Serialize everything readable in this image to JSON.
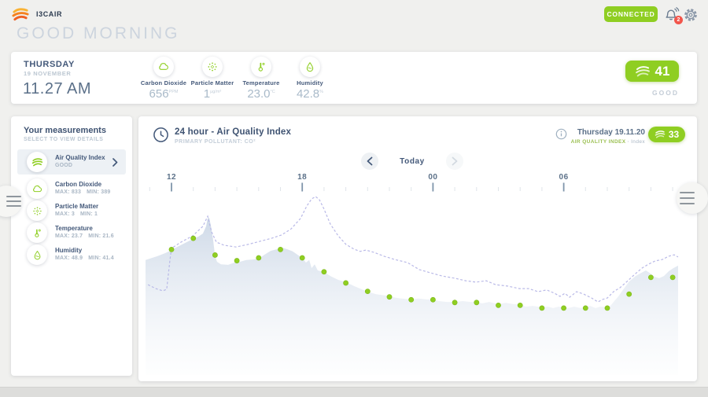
{
  "brand": {
    "name": "I3CAIR"
  },
  "header": {
    "greeting": "GOOD MORNING",
    "connection_status": "CONNECTED",
    "notification_count": "2"
  },
  "summary": {
    "day": "THURSDAY",
    "date": "19 NOVEMBER",
    "time": "11.27 AM",
    "sensors": [
      {
        "name": "Carbon Dioxide",
        "value": "656",
        "unit": "PPM",
        "icon": "cloud-icon"
      },
      {
        "name": "Particle Matter",
        "value": "1",
        "unit": "µg/m³",
        "icon": "particles-icon"
      },
      {
        "name": "Temperature",
        "value": "23.0",
        "unit": "°C",
        "icon": "thermometer-icon"
      },
      {
        "name": "Humidity",
        "value": "42.8",
        "unit": "%",
        "icon": "droplet-icon"
      }
    ],
    "aqi_badge": {
      "value": "41",
      "status": "GOOD"
    }
  },
  "sidebar": {
    "title": "Your measurements",
    "subtitle": "SELECT TO VIEW DETAILS",
    "items": [
      {
        "label": "Air Quality Index",
        "status": "GOOD",
        "selected": true
      },
      {
        "label": "Carbon Dioxide",
        "max": "MAX: 833",
        "min": "MIN: 389"
      },
      {
        "label": "Particle Matter",
        "max": "MAX: 3",
        "min": "MIN: 1"
      },
      {
        "label": "Temperature",
        "max": "MAX: 23.7",
        "min": "MIN: 21.6"
      },
      {
        "label": "Humidity",
        "max": "MAX: 48.9",
        "min": "MIN: 41.4"
      }
    ]
  },
  "chart": {
    "title": "24 hour - Air Quality Index",
    "subtitle": "PRIMARY POLLUTANT: CO²",
    "date_label": "Thursday 19.11.20",
    "series_label": "AIR QUALITY INDEX",
    "series_separator": "·",
    "series_unit": "Index",
    "badge_value": "33",
    "nav_label": "Today"
  },
  "colors": {
    "accent_green": "#8fce22",
    "badge_red": "#f2554b",
    "area_top": "#c9d5e5",
    "area_bottom": "#e7edf4",
    "dashed_line": "#b5b5e6",
    "dot_green": "#8fce22",
    "axis_major": "#7f95ab",
    "axis_minor": "#dfe4ea"
  },
  "chart_data": {
    "type": "area",
    "title": "24 hour - Air Quality Index",
    "ylabel": "Air Quality Index",
    "ylim": [
      0,
      70
    ],
    "legend": "AIR QUALITY INDEX · Index",
    "x_axis": {
      "tick_labels": [
        "12",
        "18",
        "00",
        "06"
      ],
      "tick_hours": [
        0,
        6,
        12,
        18
      ],
      "minor_ticks_hours": [
        -1,
        23
      ]
    },
    "hours": [
      "12:00",
      "13:00",
      "14:00",
      "15:00",
      "16:00",
      "17:00",
      "18:00",
      "19:00",
      "20:00",
      "21:00",
      "22:00",
      "23:00",
      "00:00",
      "01:00",
      "02:00",
      "03:00",
      "04:00",
      "05:00",
      "06:00",
      "07:00",
      "08:00",
      "09:00",
      "10:00",
      "11:00"
    ],
    "aqi_hourly": [
      43,
      47,
      41,
      39,
      40,
      43,
      40,
      35,
      31,
      28,
      26,
      25,
      25,
      24,
      24,
      23,
      23,
      22,
      22,
      22,
      22,
      27,
      33,
      33
    ],
    "aqi_profile": [
      [
        -1.19,
        39.2
      ],
      [
        -0.65,
        40.6
      ],
      [
        -0.29,
        41.7
      ],
      [
        0,
        42.8
      ],
      [
        0.25,
        43.9
      ],
      [
        0.69,
        45.6
      ],
      [
        1,
        46.8
      ],
      [
        1.23,
        47.6
      ],
      [
        1.44,
        48.7
      ],
      [
        1.59,
        51.3
      ],
      [
        1.66,
        54.1
      ],
      [
        1.73,
        54.4
      ],
      [
        1.81,
        51.5
      ],
      [
        1.91,
        46.5
      ],
      [
        2,
        40.6
      ],
      [
        2.09,
        38.6
      ],
      [
        2.27,
        37.7
      ],
      [
        2.6,
        37.5
      ],
      [
        2.89,
        38.3
      ],
      [
        3.14,
        38.6
      ],
      [
        3.43,
        39.2
      ],
      [
        3.72,
        39.4
      ],
      [
        4,
        39.7
      ],
      [
        4.26,
        41.1
      ],
      [
        4.55,
        42.5
      ],
      [
        4.84,
        43.1
      ],
      [
        5.05,
        43.7
      ],
      [
        5.31,
        43.1
      ],
      [
        5.56,
        42.3
      ],
      [
        5.85,
        40.8
      ],
      [
        6,
        40.0
      ],
      [
        6.17,
        38.3
      ],
      [
        6.32,
        39.2
      ],
      [
        6.43,
        36.3
      ],
      [
        6.57,
        37.7
      ],
      [
        6.71,
        35.5
      ],
      [
        7,
        34.9
      ],
      [
        7.29,
        33.5
      ],
      [
        7.65,
        32.1
      ],
      [
        8,
        31.3
      ],
      [
        8.38,
        29.9
      ],
      [
        8.74,
        28.7
      ],
      [
        9,
        27.9
      ],
      [
        9.39,
        27.0
      ],
      [
        9.82,
        26.5
      ],
      [
        10.18,
        25.9
      ],
      [
        10.54,
        25.4
      ],
      [
        11,
        25.1
      ],
      [
        11.34,
        25.4
      ],
      [
        11.7,
        25.1
      ],
      [
        12,
        25.1
      ],
      [
        12.27,
        24.5
      ],
      [
        12.64,
        24.2
      ],
      [
        13,
        24.2
      ],
      [
        13.36,
        24.5
      ],
      [
        13.72,
        24.2
      ],
      [
        14,
        24.2
      ],
      [
        14.26,
        23.7
      ],
      [
        14.58,
        24.2
      ],
      [
        15,
        23.4
      ],
      [
        15.34,
        23.9
      ],
      [
        15.7,
        23.4
      ],
      [
        16,
        23.4
      ],
      [
        16.25,
        22.5
      ],
      [
        16.57,
        22.8
      ],
      [
        17,
        22.3
      ],
      [
        17.29,
        22.5
      ],
      [
        17.51,
        22.0
      ],
      [
        17.76,
        22.5
      ],
      [
        18,
        22.3
      ],
      [
        18.19,
        22.0
      ],
      [
        18.48,
        22.5
      ],
      [
        18.77,
        22.0
      ],
      [
        19,
        22.3
      ],
      [
        19.21,
        22.8
      ],
      [
        19.46,
        22.0
      ],
      [
        19.68,
        22.5
      ],
      [
        20,
        22.3
      ],
      [
        20.14,
        22.8
      ],
      [
        20.29,
        24.2
      ],
      [
        20.51,
        26.2
      ],
      [
        20.76,
        29.0
      ],
      [
        21,
        31.5
      ],
      [
        21.3,
        33.5
      ],
      [
        21.55,
        34.6
      ],
      [
        21.77,
        35.5
      ],
      [
        21.95,
        34.6
      ],
      [
        22.17,
        33.2
      ],
      [
        22.38,
        32.7
      ],
      [
        22.6,
        33.5
      ],
      [
        22.82,
        35.2
      ],
      [
        23.03,
        36.3
      ],
      [
        23.25,
        37.2
      ]
    ],
    "co2_profile": [
      [
        -1.08,
        30.4
      ],
      [
        -0.72,
        29.0
      ],
      [
        -0.4,
        28.2
      ],
      [
        -0.22,
        28.7
      ],
      [
        -0.07,
        39.4
      ],
      [
        0,
        43.4
      ],
      [
        0.43,
        45.6
      ],
      [
        0.97,
        47.9
      ],
      [
        1.44,
        51.3
      ],
      [
        1.66,
        54.9
      ],
      [
        1.84,
        49.3
      ],
      [
        2.06,
        45.6
      ],
      [
        2.42,
        44.5
      ],
      [
        2.96,
        43.9
      ],
      [
        3.5,
        44.8
      ],
      [
        4.04,
        45.9
      ],
      [
        4.58,
        47.0
      ],
      [
        5.05,
        48.2
      ],
      [
        5.49,
        50.4
      ],
      [
        5.92,
        54.1
      ],
      [
        6.21,
        58.6
      ],
      [
        6.43,
        61.1
      ],
      [
        6.61,
        62.0
      ],
      [
        6.79,
        60.8
      ],
      [
        7.0,
        57.5
      ],
      [
        7.29,
        52.1
      ],
      [
        7.65,
        47.9
      ],
      [
        8.01,
        44.8
      ],
      [
        8.38,
        43.1
      ],
      [
        8.66,
        42.3
      ],
      [
        8.92,
        42.8
      ],
      [
        9.28,
        42.0
      ],
      [
        9.75,
        40.6
      ],
      [
        10.25,
        39.4
      ],
      [
        10.83,
        38.3
      ],
      [
        11.37,
        35.8
      ],
      [
        11.91,
        34.6
      ],
      [
        12.42,
        33.5
      ],
      [
        13.0,
        32.7
      ],
      [
        13.5,
        31.8
      ],
      [
        13.97,
        31.3
      ],
      [
        14.44,
        31.8
      ],
      [
        14.87,
        30.4
      ],
      [
        15.42,
        29.9
      ],
      [
        15.96,
        29.0
      ],
      [
        16.39,
        29.0
      ],
      [
        16.82,
        27.9
      ],
      [
        17.22,
        28.5
      ],
      [
        17.58,
        27.3
      ],
      [
        17.83,
        26.2
      ],
      [
        18.05,
        27.3
      ],
      [
        18.27,
        25.9
      ],
      [
        18.59,
        27.9
      ],
      [
        18.92,
        27.0
      ],
      [
        19.28,
        25.6
      ],
      [
        19.57,
        24.2
      ],
      [
        19.78,
        25.1
      ],
      [
        20.0,
        25.6
      ],
      [
        20.29,
        27.9
      ],
      [
        20.58,
        29.3
      ],
      [
        20.9,
        31.5
      ],
      [
        21.26,
        34.1
      ],
      [
        21.59,
        36.3
      ],
      [
        21.88,
        37.7
      ],
      [
        22.2,
        38.9
      ],
      [
        22.53,
        39.4
      ],
      [
        22.82,
        40.6
      ],
      [
        23.07,
        41.1
      ],
      [
        23.25,
        40.3
      ]
    ]
  }
}
